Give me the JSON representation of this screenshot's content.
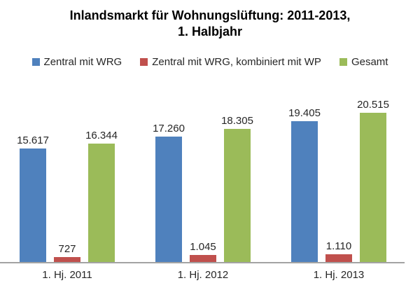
{
  "title": {
    "line1": "Inlandsmarkt für Wohnungslüftung: 2011-2013,",
    "line2": "1. Halbjahr"
  },
  "colors": {
    "series_blue": "#4F81BD",
    "series_red": "#C0504D",
    "series_green": "#9BBB59",
    "axis_line": "#A3A3A3",
    "label_text": "#262626"
  },
  "chart_data": {
    "type": "bar",
    "title": "Inlandsmarkt für Wohnungslüftung: 2011-2013, 1. Halbjahr",
    "categories": [
      "1. Hj. 2011",
      "1. Hj. 2012",
      "1. Hj. 2013"
    ],
    "series": [
      {
        "name": "Zentral mit WRG",
        "color": "#4F81BD",
        "values": [
          15617,
          17260,
          19405
        ],
        "value_labels": [
          "15.617",
          "17.260",
          "19.405"
        ]
      },
      {
        "name": "Zentral mit WRG, kombiniert mit WP",
        "color": "#C0504D",
        "values": [
          727,
          1045,
          1110
        ],
        "value_labels": [
          "727",
          "1.045",
          "1.110"
        ]
      },
      {
        "name": "Gesamt",
        "color": "#9BBB59",
        "values": [
          16344,
          18305,
          20515
        ],
        "value_labels": [
          "16.344",
          "18.305",
          "20.515"
        ]
      }
    ],
    "ylim": [
      0,
      21500
    ],
    "value_axis_visible": false,
    "gridlines": false,
    "legend_position": "top",
    "data_labels": true
  }
}
